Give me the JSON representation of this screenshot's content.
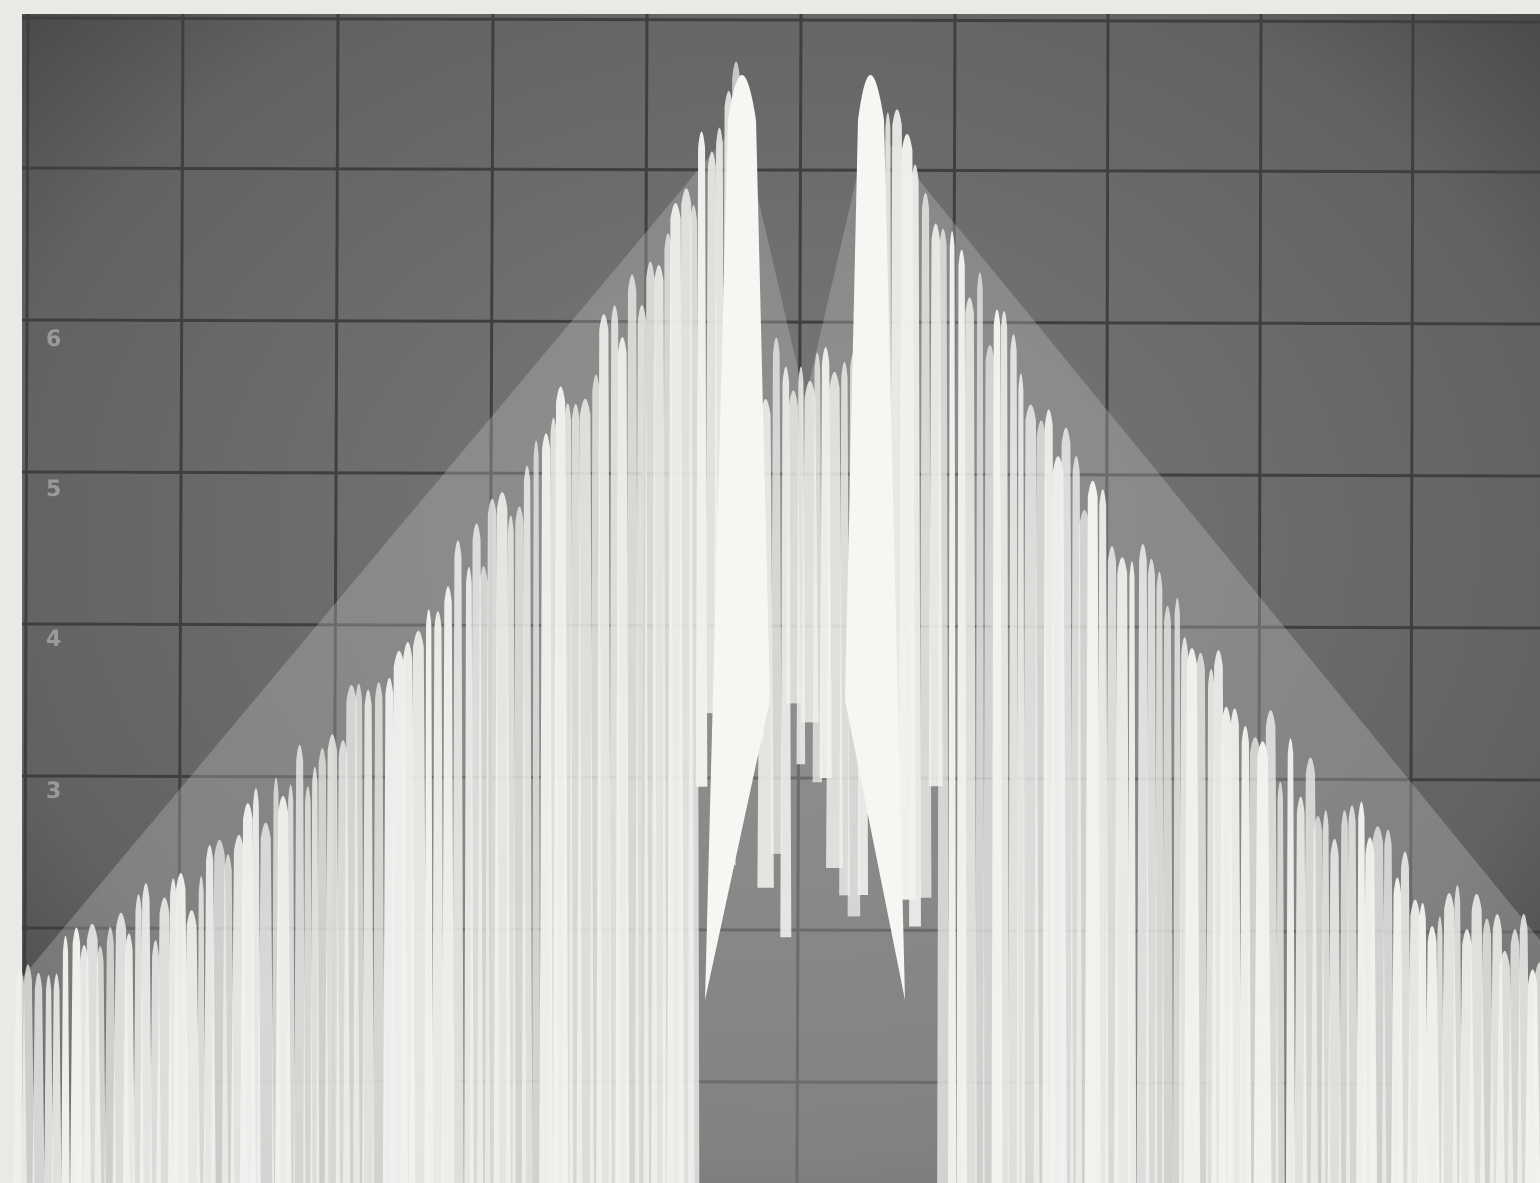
{
  "graticule_labels": [
    "6",
    "5",
    "4",
    "3"
  ]
}
